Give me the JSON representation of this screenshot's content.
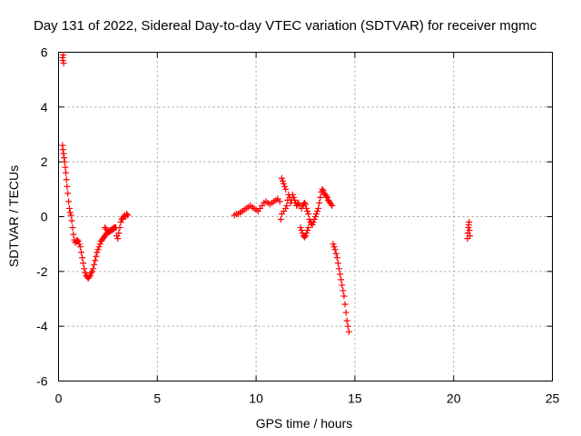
{
  "chart_data": {
    "type": "scatter",
    "title": "Day 131 of 2022, Sidereal Day-to-day VTEC variation (SDTVAR) for receiver mgmc",
    "xlabel": "GPS time / hours",
    "ylabel": "SDTVAR / TECUs",
    "xlim": [
      0,
      25
    ],
    "ylim": [
      -6,
      6
    ],
    "xticks": [
      0,
      5,
      10,
      15,
      20,
      25
    ],
    "yticks": [
      -6,
      -4,
      -2,
      0,
      2,
      4,
      6
    ],
    "xtick_labels": [
      "0",
      "5",
      "10",
      "15",
      "20",
      "25"
    ],
    "ytick_labels": [
      "-6",
      "-4",
      "-2",
      "0",
      "2",
      "4",
      "6"
    ],
    "grid": true,
    "marker": "+",
    "series": [
      {
        "name": "SDTVAR",
        "color": "#ff0000",
        "x": [
          0.2,
          0.22,
          0.24,
          0.26,
          0.2,
          0.22,
          0.25,
          0.28,
          0.31,
          0.34,
          0.37,
          0.4,
          0.43,
          0.47,
          0.51,
          0.55,
          0.59,
          0.63,
          0.67,
          0.71,
          0.75,
          0.8,
          0.85,
          0.9,
          0.95,
          1.0,
          1.05,
          1.1,
          1.15,
          1.2,
          1.25,
          1.3,
          1.35,
          1.4,
          1.45,
          1.5,
          1.55,
          1.6,
          1.65,
          1.7,
          1.75,
          1.8,
          1.85,
          1.9,
          1.95,
          2.0,
          2.05,
          2.1,
          2.15,
          2.2,
          2.25,
          2.3,
          2.35,
          2.4,
          2.45,
          2.5,
          2.55,
          2.6,
          2.65,
          2.7,
          2.75,
          2.8,
          2.85,
          2.9,
          2.35,
          2.4,
          2.5,
          2.6,
          2.7,
          2.8,
          2.9,
          2.95,
          3.0,
          3.05,
          3.1,
          3.15,
          3.2,
          3.25,
          3.3,
          3.35,
          3.4,
          3.45,
          3.5,
          8.9,
          9.0,
          9.1,
          9.2,
          9.3,
          9.4,
          9.5,
          9.6,
          9.7,
          9.8,
          9.9,
          10.0,
          10.1,
          10.2,
          10.3,
          10.4,
          10.5,
          10.6,
          10.7,
          10.8,
          10.9,
          11.0,
          11.1,
          11.2,
          11.3,
          11.35,
          11.4,
          11.45,
          11.5,
          11.25,
          11.3,
          11.4,
          11.5,
          11.55,
          11.6,
          11.65,
          11.7,
          11.75,
          11.8,
          11.85,
          11.9,
          11.95,
          12.0,
          12.05,
          12.1,
          12.15,
          12.2,
          12.25,
          12.3,
          12.35,
          12.4,
          12.45,
          12.5,
          12.55,
          12.6,
          12.65,
          12.3,
          12.35,
          12.4,
          12.45,
          12.5,
          12.55,
          12.6,
          12.65,
          12.7,
          12.75,
          12.8,
          12.85,
          12.9,
          12.95,
          13.0,
          13.05,
          13.1,
          13.15,
          13.2,
          13.25,
          13.3,
          13.35,
          13.4,
          13.45,
          13.5,
          13.55,
          13.6,
          13.65,
          13.7,
          13.75,
          13.8,
          13.85,
          13.9,
          13.95,
          14.0,
          14.05,
          14.1,
          14.15,
          14.2,
          14.25,
          14.3,
          14.35,
          14.4,
          14.45,
          14.5,
          14.55,
          14.6,
          14.65,
          14.7,
          20.7,
          20.72,
          20.74,
          20.76,
          20.78,
          20.8,
          20.82
        ],
        "y": [
          5.8,
          5.7,
          5.9,
          5.6,
          2.6,
          2.45,
          2.3,
          2.15,
          2.0,
          1.8,
          1.6,
          1.35,
          1.1,
          0.85,
          0.55,
          0.3,
          0.15,
          0.05,
          -0.15,
          -0.4,
          -0.65,
          -0.85,
          -0.95,
          -0.9,
          -0.85,
          -0.9,
          -1.0,
          -1.1,
          -1.3,
          -1.5,
          -1.7,
          -1.9,
          -2.05,
          -2.15,
          -2.2,
          -2.25,
          -2.2,
          -2.15,
          -2.05,
          -2.0,
          -1.9,
          -1.75,
          -1.6,
          -1.45,
          -1.3,
          -1.2,
          -1.1,
          -1.0,
          -0.9,
          -0.85,
          -0.8,
          -0.75,
          -0.7,
          -0.65,
          -0.6,
          -0.55,
          -0.55,
          -0.5,
          -0.5,
          -0.45,
          -0.45,
          -0.4,
          -0.4,
          -0.4,
          -0.4,
          -0.45,
          -0.5,
          -0.55,
          -0.5,
          -0.45,
          -0.4,
          -0.7,
          -0.8,
          -0.6,
          -0.4,
          -0.2,
          -0.1,
          -0.05,
          0.0,
          0.05,
          0.0,
          0.1,
          0.05,
          0.05,
          0.1,
          0.1,
          0.15,
          0.2,
          0.25,
          0.3,
          0.35,
          0.4,
          0.35,
          0.3,
          0.25,
          0.2,
          0.3,
          0.4,
          0.5,
          0.55,
          0.5,
          0.45,
          0.5,
          0.55,
          0.6,
          0.65,
          0.55,
          1.4,
          1.3,
          1.2,
          1.1,
          1.0,
          -0.1,
          0.1,
          0.2,
          0.3,
          0.4,
          0.6,
          0.8,
          0.7,
          0.5,
          0.6,
          0.8,
          0.7,
          0.6,
          0.5,
          0.4,
          0.45,
          0.5,
          0.4,
          -0.4,
          -0.5,
          -0.6,
          -0.7,
          -0.75,
          -0.7,
          -0.6,
          -0.5,
          -0.4,
          0.3,
          0.4,
          0.45,
          0.5,
          0.45,
          0.3,
          0.2,
          0.1,
          -0.1,
          -0.2,
          -0.25,
          -0.3,
          -0.2,
          -0.1,
          0.0,
          0.1,
          0.2,
          0.3,
          0.5,
          0.7,
          0.9,
          1.0,
          0.95,
          0.85,
          0.8,
          0.75,
          0.7,
          0.6,
          0.55,
          0.5,
          0.45,
          0.4,
          -1.0,
          -1.1,
          -1.2,
          -1.35,
          -1.5,
          -1.7,
          -1.9,
          -2.1,
          -2.3,
          -2.5,
          -2.7,
          -2.9,
          -3.2,
          -3.5,
          -3.8,
          -4.0,
          -4.2,
          -0.8,
          -0.6,
          -0.4,
          -0.3,
          -0.2,
          -0.5,
          -0.7
        ]
      }
    ]
  }
}
